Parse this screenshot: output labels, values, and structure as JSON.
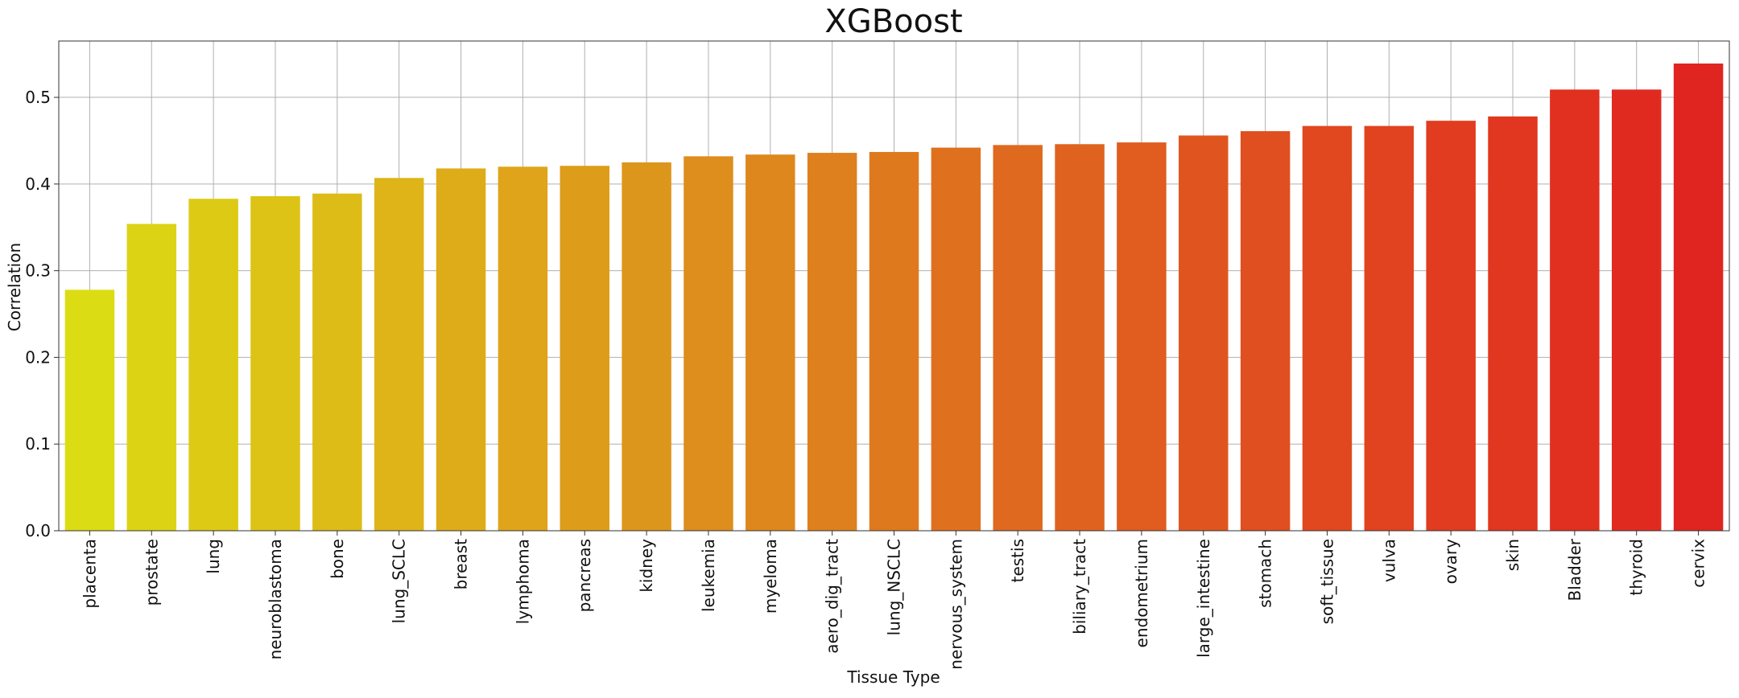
{
  "chart_data": {
    "type": "bar",
    "title": "XGBoost",
    "xlabel": "Tissue Type",
    "ylabel": "Correlation",
    "ylim": [
      0,
      0.565
    ],
    "yticks": [
      "0.0",
      "0.1",
      "0.2",
      "0.3",
      "0.4",
      "0.5"
    ],
    "grid": true,
    "categories": [
      "placenta",
      "prostate",
      "lung",
      "neuroblastoma",
      "bone",
      "lung_SCLC",
      "breast",
      "lymphoma",
      "pancreas",
      "kidney",
      "leukemia",
      "myeloma",
      "aero_dig_tract",
      "lung_NSCLC",
      "nervous_system",
      "testis",
      "biliary_tract",
      "endometrium",
      "large_intestine",
      "stomach",
      "soft_tissue",
      "vulva",
      "ovary",
      "skin",
      "Bladder",
      "thyroid",
      "cervix"
    ],
    "values": [
      0.278,
      0.354,
      0.383,
      0.386,
      0.389,
      0.407,
      0.418,
      0.42,
      0.421,
      0.425,
      0.432,
      0.434,
      0.436,
      0.437,
      0.442,
      0.445,
      0.446,
      0.448,
      0.456,
      0.461,
      0.467,
      0.467,
      0.473,
      0.478,
      0.509,
      0.509,
      0.539
    ],
    "colors": [
      "#dcdc14",
      "#dcd314",
      "#ddca15",
      "#ddc316",
      "#ddbc17",
      "#deb418",
      "#deac19",
      "#dfa41a",
      "#dd9d1b",
      "#dd961c",
      "#dd8e1d",
      "#de871d",
      "#de801e",
      "#df791e",
      "#df711e",
      "#df6a1f",
      "#df631f",
      "#e05c1f",
      "#e0551f",
      "#e04f1f",
      "#e1481f",
      "#e1421f",
      "#e13c20",
      "#e13620",
      "#e13020",
      "#e02a20",
      "#e02420"
    ]
  }
}
